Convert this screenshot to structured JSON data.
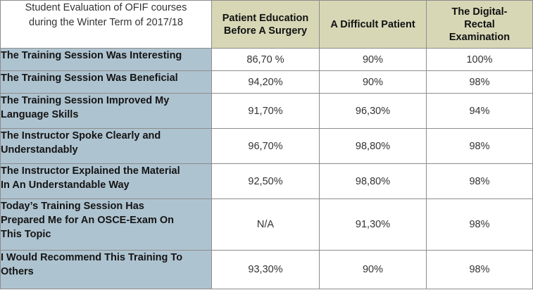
{
  "header": {
    "caption_line1": "Student Evaluation of OFIF courses",
    "caption_line2": "during the Winter Term of 2017/18",
    "columns": [
      [
        "Patient Education",
        "Before A Surgery"
      ],
      [
        "A Difficult Patient"
      ],
      [
        "The Digital-",
        "Rectal",
        "Examination"
      ]
    ]
  },
  "rows": [
    {
      "label_lines": [
        "The Training Session Was Interesting"
      ],
      "values": [
        "86,70 %",
        "90%",
        "100%"
      ]
    },
    {
      "label_lines": [
        "The Training Session Was Beneficial"
      ],
      "values": [
        "94,20%",
        "90%",
        "98%"
      ]
    },
    {
      "label_lines": [
        "The Training Session Improved My",
        "Language Skills"
      ],
      "values": [
        "91,70%",
        "96,30%",
        "94%"
      ]
    },
    {
      "label_lines": [
        "The Instructor Spoke Clearly and",
        "Understandably"
      ],
      "values": [
        "96,70%",
        "98,80%",
        "98%"
      ]
    },
    {
      "label_lines": [
        "The Instructor Explained the Material",
        "In An Understandable Way"
      ],
      "values": [
        "92,50%",
        "98,80%",
        "98%"
      ]
    },
    {
      "label_lines": [
        "Today’s Training Session Has",
        "Prepared Me for An OSCE-Exam On",
        "This Topic"
      ],
      "values": [
        "N/A",
        "91,30%",
        "98%"
      ]
    },
    {
      "label_lines": [
        "I Would Recommend This Training To",
        "Others"
      ],
      "values": [
        "93,30%",
        "90%",
        "98%"
      ]
    }
  ],
  "colors": {
    "header_fill": "#d7d7b6",
    "row_label_fill": "#aec3d0",
    "grid": "#8c8c8c"
  }
}
